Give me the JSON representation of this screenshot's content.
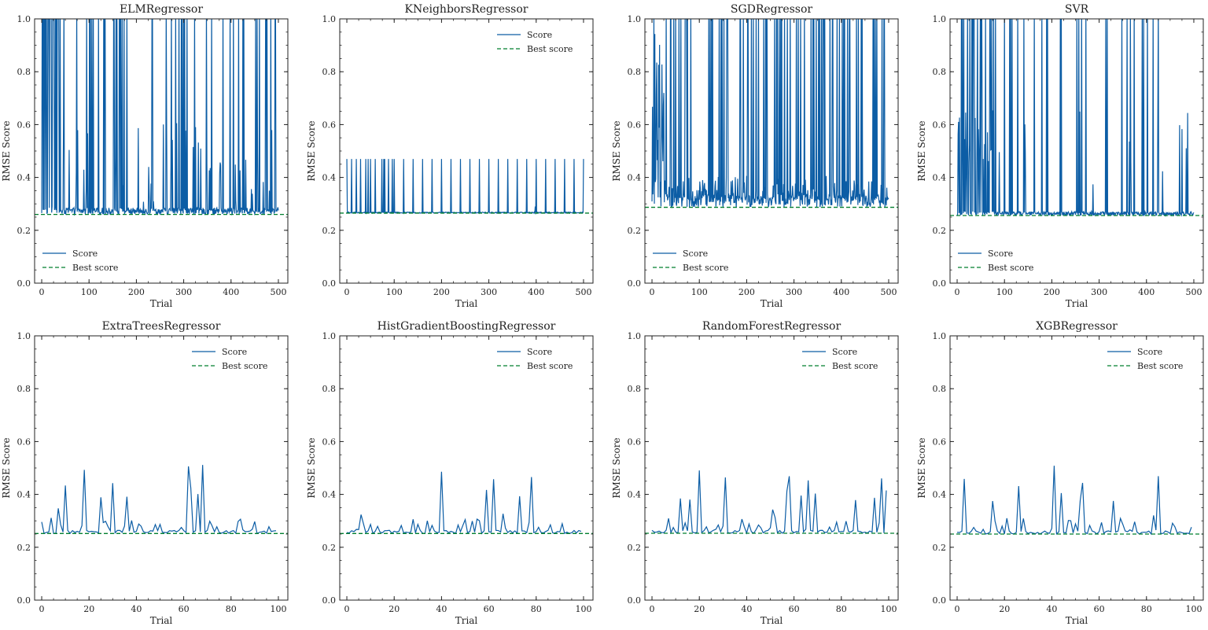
{
  "colors": {
    "score": "#0C5DA5",
    "best": "#00B945",
    "best_dark": "#007f2e",
    "axis": "#222222"
  },
  "chart_data": [
    {
      "type": "line",
      "title": "ELMRegressor",
      "xlabel": "Trial",
      "ylabel": "RMSE Score",
      "xlim": [
        -15,
        520
      ],
      "ylim": [
        0,
        1
      ],
      "xticks": [
        0,
        100,
        200,
        300,
        400,
        500
      ],
      "yticks": [
        0.0,
        0.2,
        0.4,
        0.6,
        0.8,
        1.0
      ],
      "legend": "lower-left",
      "n": 501,
      "best": 0.26,
      "pattern": "spiky-full",
      "series": [
        {
          "name": "Score"
        },
        {
          "name": "Best score"
        }
      ]
    },
    {
      "type": "line",
      "title": "KNeighborsRegressor",
      "xlabel": "Trial",
      "ylabel": "RMSE Score",
      "xlim": [
        -15,
        520
      ],
      "ylim": [
        0,
        1
      ],
      "xticks": [
        0,
        100,
        200,
        300,
        400,
        500
      ],
      "yticks": [
        0.0,
        0.2,
        0.4,
        0.6,
        0.8,
        1.0
      ],
      "legend": "upper-right",
      "n": 501,
      "best": 0.265,
      "pattern": "knn",
      "series": [
        {
          "name": "Score"
        },
        {
          "name": "Best score"
        }
      ]
    },
    {
      "type": "line",
      "title": "SGDRegressor",
      "xlabel": "Trial",
      "ylabel": "RMSE Score",
      "xlim": [
        -15,
        520
      ],
      "ylim": [
        0,
        1
      ],
      "xticks": [
        0,
        100,
        200,
        300,
        400,
        500
      ],
      "yticks": [
        0.0,
        0.2,
        0.4,
        0.6,
        0.8,
        1.0
      ],
      "legend": "lower-left",
      "n": 501,
      "best": 0.287,
      "pattern": "spiky-dense",
      "series": [
        {
          "name": "Score"
        },
        {
          "name": "Best score"
        }
      ]
    },
    {
      "type": "line",
      "title": "SVR",
      "xlabel": "Trial",
      "ylabel": "RMSE Score",
      "xlim": [
        -15,
        520
      ],
      "ylim": [
        0,
        1
      ],
      "xticks": [
        0,
        100,
        200,
        300,
        400,
        500
      ],
      "yticks": [
        0.0,
        0.2,
        0.4,
        0.6,
        0.8,
        1.0
      ],
      "legend": "lower-left",
      "n": 501,
      "best": 0.256,
      "pattern": "svr",
      "series": [
        {
          "name": "Score"
        },
        {
          "name": "Best score"
        }
      ]
    },
    {
      "type": "line",
      "title": "ExtraTreesRegressor",
      "xlabel": "Trial",
      "ylabel": "RMSE Score",
      "xlim": [
        -3,
        104
      ],
      "ylim": [
        0,
        1
      ],
      "xticks": [
        0,
        20,
        40,
        60,
        80,
        100
      ],
      "yticks": [
        0.0,
        0.2,
        0.4,
        0.6,
        0.8,
        1.0
      ],
      "legend": "upper-right",
      "n": 100,
      "best": 0.252,
      "pattern": "small",
      "series": [
        {
          "name": "Score"
        },
        {
          "name": "Best score"
        }
      ]
    },
    {
      "type": "line",
      "title": "HistGradientBoostingRegressor",
      "xlabel": "Trial",
      "ylabel": "RMSE Score",
      "xlim": [
        -3,
        104
      ],
      "ylim": [
        0,
        1
      ],
      "xticks": [
        0,
        20,
        40,
        60,
        80,
        100
      ],
      "yticks": [
        0.0,
        0.2,
        0.4,
        0.6,
        0.8,
        1.0
      ],
      "legend": "upper-right",
      "n": 100,
      "best": 0.252,
      "pattern": "small",
      "series": [
        {
          "name": "Score"
        },
        {
          "name": "Best score"
        }
      ]
    },
    {
      "type": "line",
      "title": "RandomForestRegressor",
      "xlabel": "Trial",
      "ylabel": "RMSE Score",
      "xlim": [
        -3,
        104
      ],
      "ylim": [
        0,
        1
      ],
      "xticks": [
        0,
        20,
        40,
        60,
        80,
        100
      ],
      "yticks": [
        0.0,
        0.2,
        0.4,
        0.6,
        0.8,
        1.0
      ],
      "legend": "upper-right",
      "n": 100,
      "best": 0.253,
      "pattern": "small",
      "series": [
        {
          "name": "Score"
        },
        {
          "name": "Best score"
        }
      ]
    },
    {
      "type": "line",
      "title": "XGBRegressor",
      "xlabel": "Trial",
      "ylabel": "RMSE Score",
      "xlim": [
        -3,
        104
      ],
      "ylim": [
        0,
        1
      ],
      "xticks": [
        0,
        20,
        40,
        60,
        80,
        100
      ],
      "yticks": [
        0.0,
        0.2,
        0.4,
        0.6,
        0.8,
        1.0
      ],
      "legend": "upper-right",
      "n": 100,
      "best": 0.25,
      "pattern": "small",
      "series": [
        {
          "name": "Score"
        },
        {
          "name": "Best score"
        }
      ]
    }
  ]
}
